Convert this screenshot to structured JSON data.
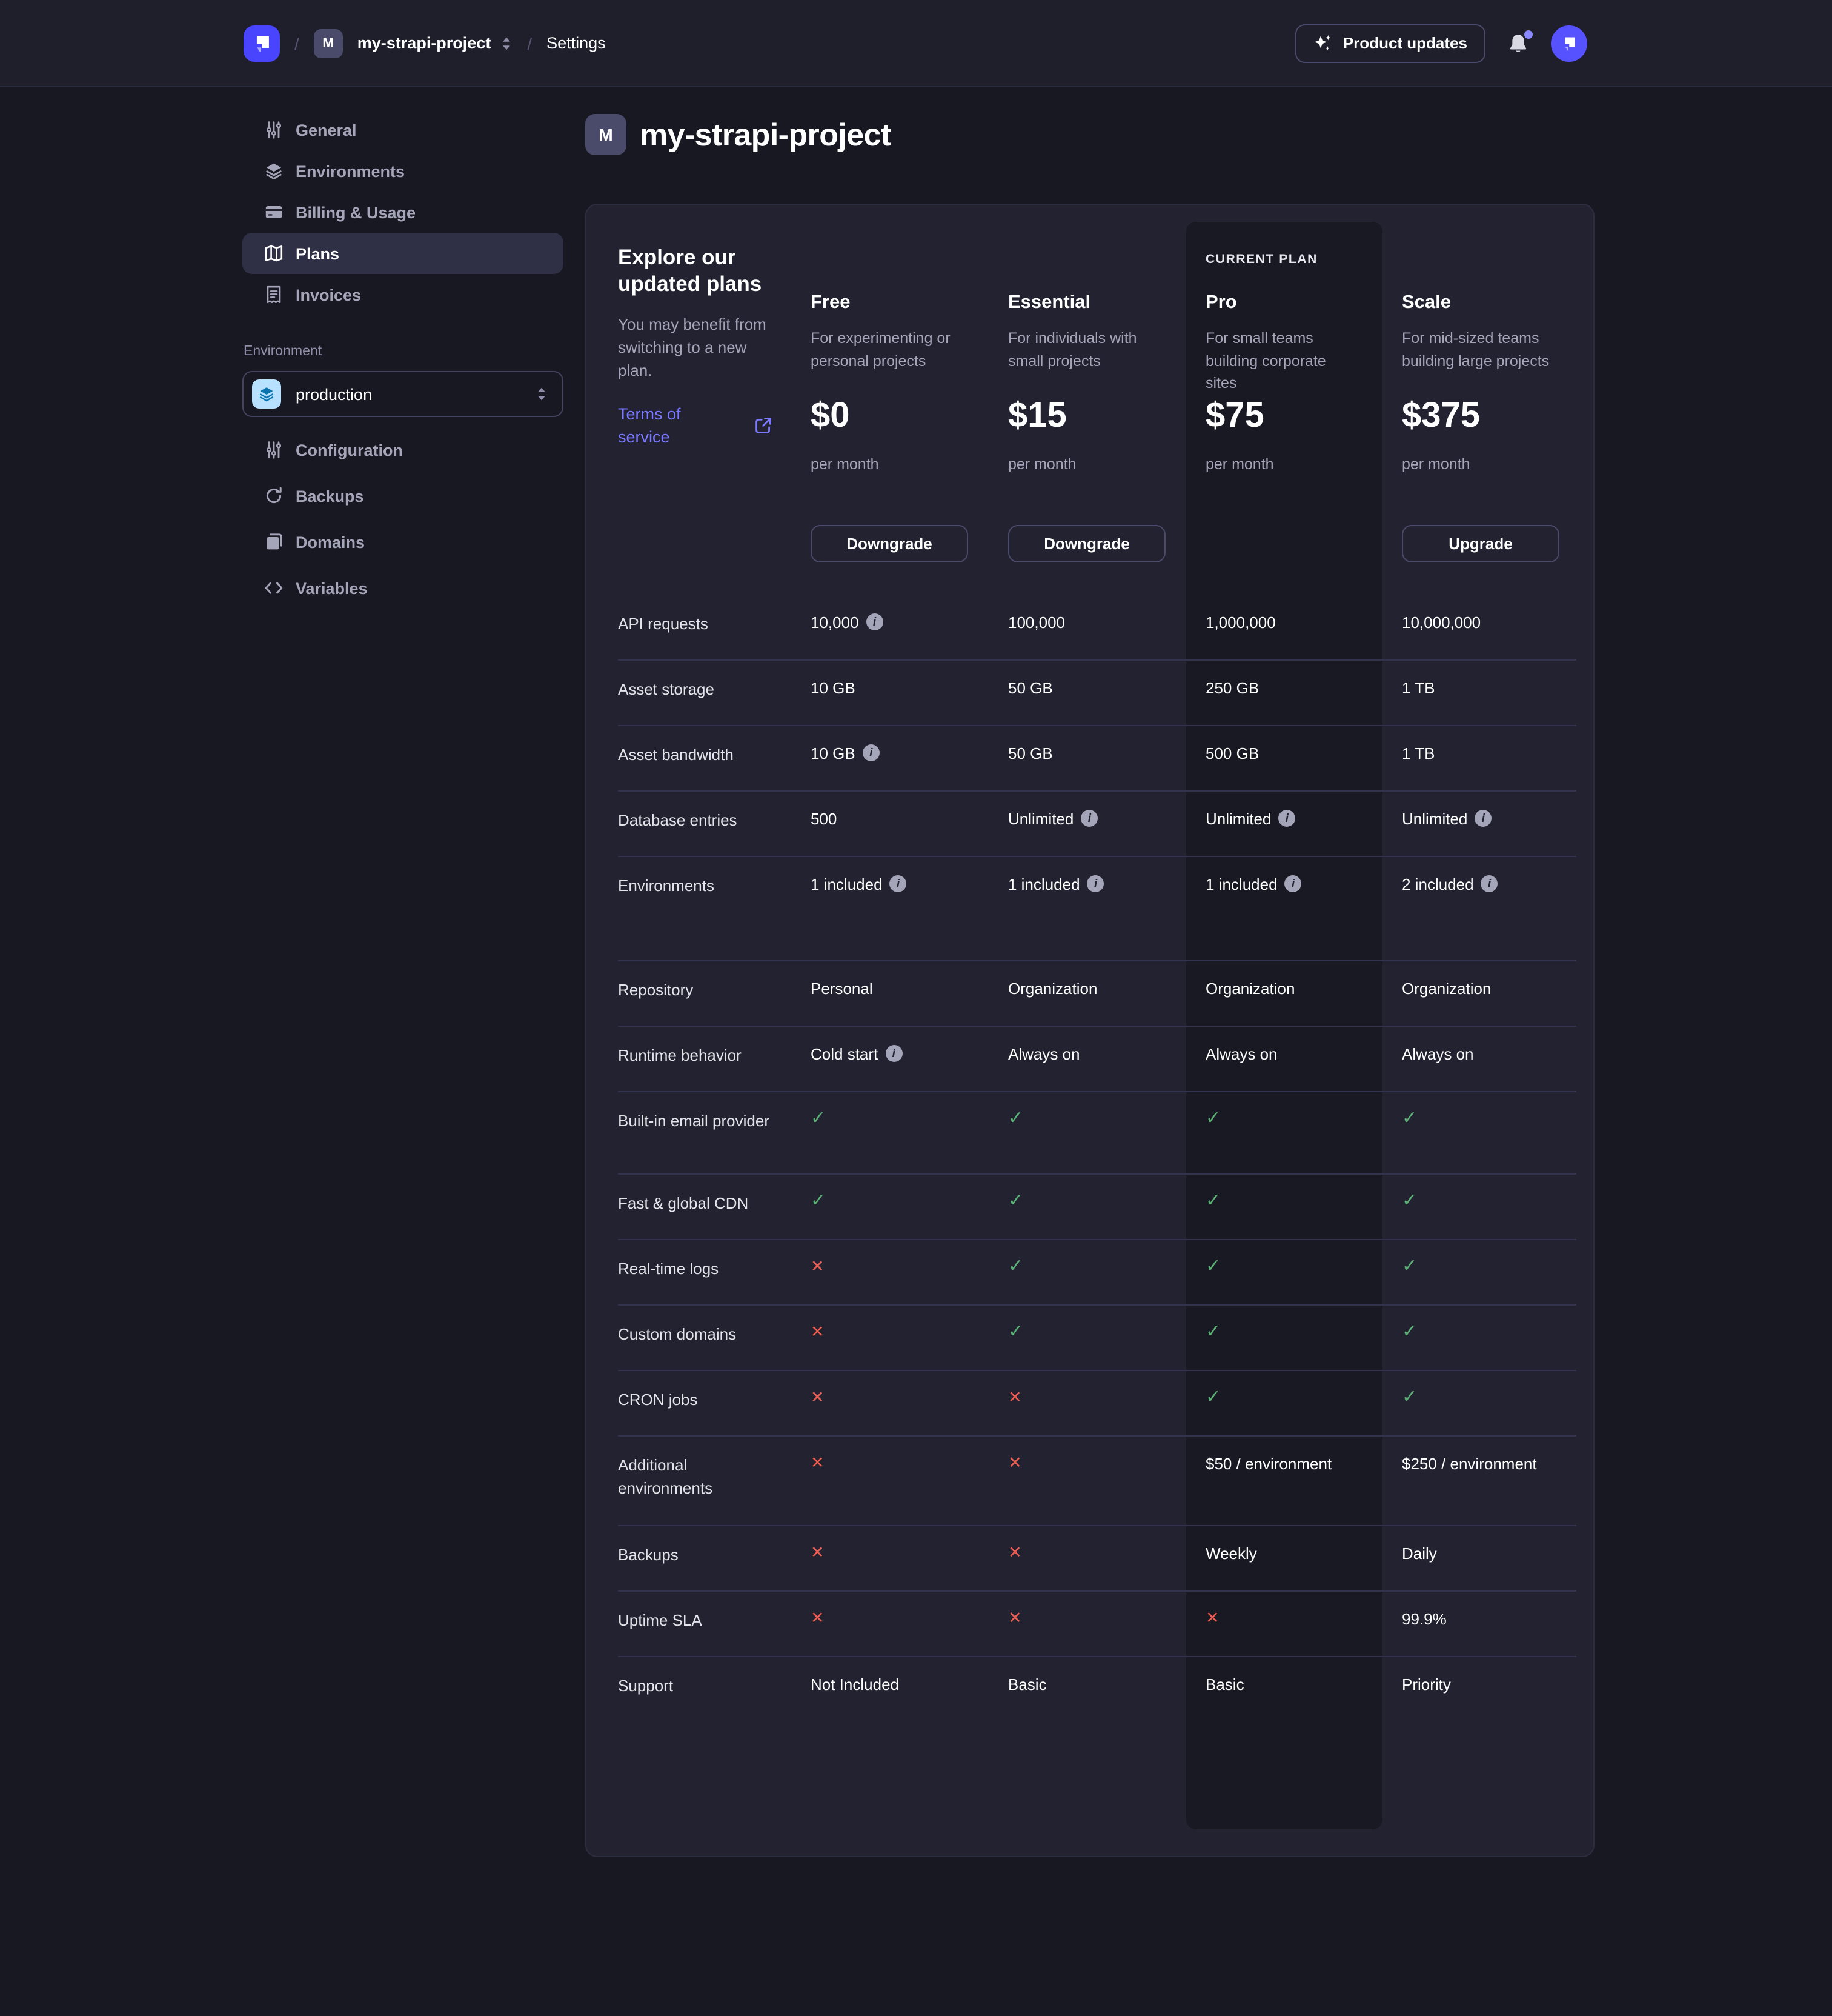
{
  "navbar": {
    "project_initial": "M",
    "project_name": "my-strapi-project",
    "settings_label": "Settings",
    "product_updates_label": "Product updates"
  },
  "sidebar": {
    "items": [
      {
        "label": "General",
        "icon": "sliders",
        "active": false
      },
      {
        "label": "Environments",
        "icon": "layers",
        "active": false
      },
      {
        "label": "Billing & Usage",
        "icon": "credit-card",
        "active": false
      },
      {
        "label": "Plans",
        "icon": "map",
        "active": true
      },
      {
        "label": "Invoices",
        "icon": "receipt",
        "active": false
      }
    ],
    "environment_label": "Environment",
    "environment_value": "production",
    "env_items": [
      {
        "label": "Configuration",
        "icon": "sliders"
      },
      {
        "label": "Backups",
        "icon": "refresh"
      },
      {
        "label": "Domains",
        "icon": "pages"
      },
      {
        "label": "Variables",
        "icon": "code"
      }
    ]
  },
  "main": {
    "project_initial": "M",
    "title": "my-strapi-project",
    "intro": {
      "heading": "Explore our updated plans",
      "body": "You may benefit from switching to a new plan.",
      "link": "Terms of service"
    },
    "current_plan_label": "CURRENT PLAN",
    "plans": [
      {
        "name": "Free",
        "description": "For experimenting or personal projects",
        "price": "$0",
        "period": "per month",
        "button": "Downgrade",
        "current": false
      },
      {
        "name": "Essential",
        "description": "For individuals with small projects",
        "price": "$15",
        "period": "per month",
        "button": "Downgrade",
        "current": false
      },
      {
        "name": "Pro",
        "description": "For small teams building corporate sites",
        "price": "$75",
        "period": "per month",
        "button": null,
        "current": true
      },
      {
        "name": "Scale",
        "description": "For mid-sized teams building large projects",
        "price": "$375",
        "period": "per month",
        "button": "Upgrade",
        "current": false
      }
    ],
    "features": [
      {
        "label": "API requests",
        "values": [
          {
            "text": "10,000",
            "info": true
          },
          {
            "text": "100,000"
          },
          {
            "text": "1,000,000"
          },
          {
            "text": "10,000,000"
          }
        ]
      },
      {
        "label": "Asset storage",
        "values": [
          {
            "text": "10 GB"
          },
          {
            "text": "50 GB"
          },
          {
            "text": "250 GB"
          },
          {
            "text": "1 TB"
          }
        ]
      },
      {
        "label": "Asset bandwidth",
        "values": [
          {
            "text": "10 GB",
            "info": true
          },
          {
            "text": "50 GB"
          },
          {
            "text": "500 GB"
          },
          {
            "text": "1 TB"
          }
        ]
      },
      {
        "label": "Database entries",
        "values": [
          {
            "text": "500"
          },
          {
            "text": "Unlimited",
            "info": true
          },
          {
            "text": "Unlimited",
            "info": true
          },
          {
            "text": "Unlimited",
            "info": true
          }
        ]
      },
      {
        "label": "Environments",
        "values": [
          {
            "text": "1 included",
            "info": true
          },
          {
            "text": "1 included",
            "info": true
          },
          {
            "text": "1 included",
            "info": true
          },
          {
            "text": "2 included",
            "info": true
          }
        ]
      },
      {
        "label": "Repository",
        "values": [
          {
            "text": "Personal"
          },
          {
            "text": "Organization"
          },
          {
            "text": "Organization"
          },
          {
            "text": "Organization"
          }
        ]
      },
      {
        "label": "Runtime behavior",
        "values": [
          {
            "text": "Cold start",
            "info": true
          },
          {
            "text": "Always on"
          },
          {
            "text": "Always on"
          },
          {
            "text": "Always on"
          }
        ]
      },
      {
        "label": "Built-in email provider",
        "values": [
          {
            "mark": "check"
          },
          {
            "mark": "check"
          },
          {
            "mark": "check"
          },
          {
            "mark": "check"
          }
        ]
      },
      {
        "label": "Fast & global CDN",
        "values": [
          {
            "mark": "check"
          },
          {
            "mark": "check"
          },
          {
            "mark": "check"
          },
          {
            "mark": "check"
          }
        ]
      },
      {
        "label": "Real-time logs",
        "values": [
          {
            "mark": "cross"
          },
          {
            "mark": "check"
          },
          {
            "mark": "check"
          },
          {
            "mark": "check"
          }
        ]
      },
      {
        "label": "Custom domains",
        "values": [
          {
            "mark": "cross"
          },
          {
            "mark": "check"
          },
          {
            "mark": "check"
          },
          {
            "mark": "check"
          }
        ]
      },
      {
        "label": "CRON jobs",
        "values": [
          {
            "mark": "cross"
          },
          {
            "mark": "cross"
          },
          {
            "mark": "check"
          },
          {
            "mark": "check"
          }
        ]
      },
      {
        "label": "Additional environments",
        "values": [
          {
            "mark": "cross"
          },
          {
            "mark": "cross"
          },
          {
            "text": "$50 / environment"
          },
          {
            "text": "$250 / environment"
          }
        ]
      },
      {
        "label": "Backups",
        "values": [
          {
            "mark": "cross"
          },
          {
            "mark": "cross"
          },
          {
            "text": "Weekly"
          },
          {
            "text": "Daily"
          }
        ]
      },
      {
        "label": "Uptime SLA",
        "values": [
          {
            "mark": "cross"
          },
          {
            "mark": "cross"
          },
          {
            "mark": "cross"
          },
          {
            "text": "99.9%"
          }
        ]
      },
      {
        "label": "Support",
        "values": [
          {
            "text": "Not Included"
          },
          {
            "text": "Basic"
          },
          {
            "text": "Basic"
          },
          {
            "text": "Priority"
          }
        ]
      }
    ]
  },
  "colors": {
    "accent": "#4945ff",
    "link": "#7b79ff",
    "success": "#5cb176",
    "danger": "#ee5e52",
    "env_icon_bg": "#b8e1ff",
    "env_icon": "#0c75af"
  }
}
